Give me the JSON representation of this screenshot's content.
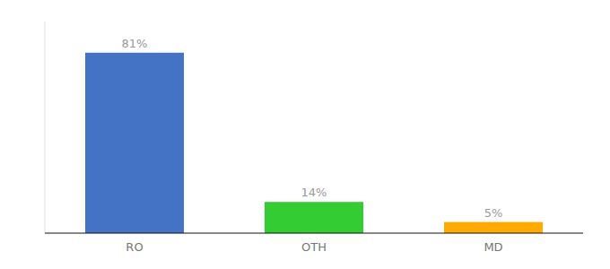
{
  "chart_data": {
    "type": "bar",
    "categories": [
      "RO",
      "OTH",
      "MD"
    ],
    "values": [
      81,
      14,
      5
    ],
    "value_labels": [
      "81%",
      "14%",
      "5%"
    ],
    "colors": [
      "#4472c4",
      "#33cc33",
      "#ffaa00"
    ],
    "ylim": [
      0,
      95
    ],
    "data_labels": true,
    "tick_labels": "x",
    "grid": false
  }
}
